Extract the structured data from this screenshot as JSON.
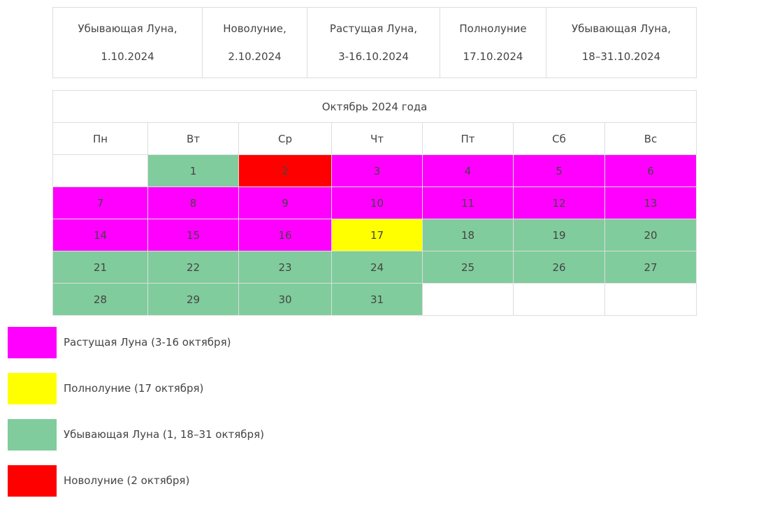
{
  "colors": {
    "waxing": "#ff00ff",
    "full": "#ffff00",
    "waning": "#80cc9c",
    "new": "#ff0000",
    "empty": "#ffffff"
  },
  "phases": [
    {
      "name": "Убывающая Луна,",
      "date": "1.10.2024"
    },
    {
      "name": "Новолуние,",
      "date": "2.10.2024"
    },
    {
      "name": "Растущая Луна,",
      "date": "3-16.10.2024"
    },
    {
      "name": "Полнолуние",
      "date": "17.10.2024"
    },
    {
      "name": "Убывающая Луна,",
      "date": "18–31.10.2024"
    }
  ],
  "calendar": {
    "title": "Октябрь 2024 года",
    "weekdays": [
      "Пн",
      "Вт",
      "Ср",
      "Чт",
      "Пт",
      "Сб",
      "Вс"
    ],
    "weeks": [
      [
        {
          "day": "",
          "phase": "empty"
        },
        {
          "day": "1",
          "phase": "waning"
        },
        {
          "day": "2",
          "phase": "new"
        },
        {
          "day": "3",
          "phase": "waxing"
        },
        {
          "day": "4",
          "phase": "waxing"
        },
        {
          "day": "5",
          "phase": "waxing"
        },
        {
          "day": "6",
          "phase": "waxing"
        }
      ],
      [
        {
          "day": "7",
          "phase": "waxing"
        },
        {
          "day": "8",
          "phase": "waxing"
        },
        {
          "day": "9",
          "phase": "waxing"
        },
        {
          "day": "10",
          "phase": "waxing"
        },
        {
          "day": "11",
          "phase": "waxing"
        },
        {
          "day": "12",
          "phase": "waxing"
        },
        {
          "day": "13",
          "phase": "waxing"
        }
      ],
      [
        {
          "day": "14",
          "phase": "waxing"
        },
        {
          "day": "15",
          "phase": "waxing"
        },
        {
          "day": "16",
          "phase": "waxing"
        },
        {
          "day": "17",
          "phase": "full"
        },
        {
          "day": "18",
          "phase": "waning"
        },
        {
          "day": "19",
          "phase": "waning"
        },
        {
          "day": "20",
          "phase": "waning"
        }
      ],
      [
        {
          "day": "21",
          "phase": "waning"
        },
        {
          "day": "22",
          "phase": "waning"
        },
        {
          "day": "23",
          "phase": "waning"
        },
        {
          "day": "24",
          "phase": "waning"
        },
        {
          "day": "25",
          "phase": "waning"
        },
        {
          "day": "26",
          "phase": "waning"
        },
        {
          "day": "27",
          "phase": "waning"
        }
      ],
      [
        {
          "day": "28",
          "phase": "waning"
        },
        {
          "day": "29",
          "phase": "waning"
        },
        {
          "day": "30",
          "phase": "waning"
        },
        {
          "day": "31",
          "phase": "waning"
        },
        {
          "day": "",
          "phase": "empty"
        },
        {
          "day": "",
          "phase": "empty"
        },
        {
          "day": "",
          "phase": "empty"
        }
      ]
    ]
  },
  "legend": [
    {
      "phase": "waxing",
      "label": "Растущая Луна (3-16 октября)"
    },
    {
      "phase": "full",
      "label": "Полнолуние (17 октября)"
    },
    {
      "phase": "waning",
      "label": "Убывающая Луна (1, 18–31 октября)"
    },
    {
      "phase": "new",
      "label": "Новолуние (2 октября)"
    }
  ]
}
